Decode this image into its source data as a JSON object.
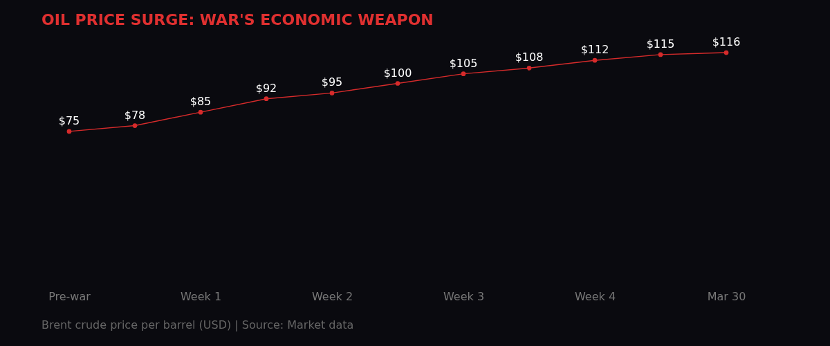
{
  "chart_data": {
    "type": "line",
    "title": "OIL PRICE SURGE: WAR'S ECONOMIC WEAPON",
    "categories": [
      "Pre-war",
      null,
      "Week 1",
      null,
      "Week 2",
      null,
      "Week 3",
      null,
      "Week 4",
      null,
      "Mar 30"
    ],
    "series": [
      {
        "color": "#d62b2b",
        "values": [
          75,
          78,
          85,
          92,
          95,
          100,
          105,
          108,
          112,
          115,
          116
        ],
        "value_labels": [
          "$75",
          "$78",
          "$85",
          "$92",
          "$95",
          "$100",
          "$105",
          "$108",
          "$112",
          "$115",
          "$116"
        ]
      }
    ],
    "tick_labels": "x",
    "marker": "circle",
    "line_style": "solid",
    "annotations": [
      "Brent crude price per barrel (USD) | Source: Market data"
    ]
  }
}
